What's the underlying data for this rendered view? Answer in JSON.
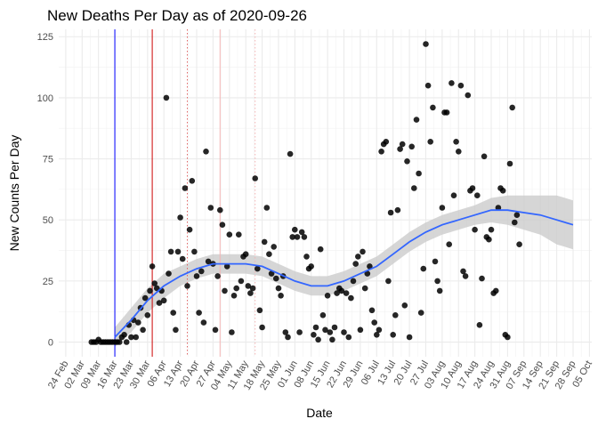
{
  "chart_data": {
    "type": "scatter",
    "title": "New Deaths Per Day as of 2020-09-26",
    "xlabel": "Date",
    "ylabel": "New Counts Per Day",
    "x_range": [
      "2020-02-21",
      "2020-10-06"
    ],
    "ylim": [
      -6,
      128
    ],
    "y_ticks": [
      0,
      25,
      50,
      75,
      100,
      125
    ],
    "x_ticks": [
      {
        "date": "2020-02-24",
        "label": "24 Feb"
      },
      {
        "date": "2020-03-02",
        "label": "02 Mar"
      },
      {
        "date": "2020-03-09",
        "label": "09 Mar"
      },
      {
        "date": "2020-03-16",
        "label": "16 Mar"
      },
      {
        "date": "2020-03-23",
        "label": "23 Mar"
      },
      {
        "date": "2020-03-30",
        "label": "30 Mar"
      },
      {
        "date": "2020-04-06",
        "label": "06 Apr"
      },
      {
        "date": "2020-04-13",
        "label": "13 Apr"
      },
      {
        "date": "2020-04-20",
        "label": "20 Apr"
      },
      {
        "date": "2020-04-27",
        "label": "27 Apr"
      },
      {
        "date": "2020-05-04",
        "label": "04 May"
      },
      {
        "date": "2020-05-11",
        "label": "11 May"
      },
      {
        "date": "2020-05-18",
        "label": "18 May"
      },
      {
        "date": "2020-05-25",
        "label": "25 May"
      },
      {
        "date": "2020-06-01",
        "label": "01 Jun"
      },
      {
        "date": "2020-06-08",
        "label": "08 Jun"
      },
      {
        "date": "2020-06-15",
        "label": "15 Jun"
      },
      {
        "date": "2020-06-22",
        "label": "22 Jun"
      },
      {
        "date": "2020-06-29",
        "label": "29 Jun"
      },
      {
        "date": "2020-07-06",
        "label": "06 Jul"
      },
      {
        "date": "2020-07-13",
        "label": "13 Jul"
      },
      {
        "date": "2020-07-20",
        "label": "20 Jul"
      },
      {
        "date": "2020-07-27",
        "label": "27 Jul"
      },
      {
        "date": "2020-08-03",
        "label": "03 Aug"
      },
      {
        "date": "2020-08-10",
        "label": "10 Aug"
      },
      {
        "date": "2020-08-17",
        "label": "17 Aug"
      },
      {
        "date": "2020-08-24",
        "label": "24 Aug"
      },
      {
        "date": "2020-08-31",
        "label": "31 Aug"
      },
      {
        "date": "2020-09-07",
        "label": "07 Sep"
      },
      {
        "date": "2020-09-14",
        "label": "14 Sep"
      },
      {
        "date": "2020-09-21",
        "label": "21 Sep"
      },
      {
        "date": "2020-09-28",
        "label": "28 Sep"
      },
      {
        "date": "2020-10-05",
        "label": "05 Oct"
      }
    ],
    "grid": true,
    "vlines": [
      {
        "date": "2020-03-16",
        "color": "#0000ff",
        "style": "solid"
      },
      {
        "date": "2020-04-01",
        "color": "#cc0000",
        "style": "solid"
      },
      {
        "date": "2020-04-16",
        "color": "#e06666",
        "style": "dotted"
      },
      {
        "date": "2020-04-30",
        "color": "#f4b4b4",
        "style": "solid"
      },
      {
        "date": "2020-05-15",
        "color": "#f4b4b4",
        "style": "dotted"
      }
    ],
    "point_color": "#000000",
    "smooth_color": "#3366ff",
    "band_color": "#cccccc",
    "points": [
      [
        "2020-03-06",
        0
      ],
      [
        "2020-03-07",
        0
      ],
      [
        "2020-03-08",
        0
      ],
      [
        "2020-03-09",
        1
      ],
      [
        "2020-03-10",
        0
      ],
      [
        "2020-03-11",
        0
      ],
      [
        "2020-03-12",
        0
      ],
      [
        "2020-03-13",
        0
      ],
      [
        "2020-03-14",
        0
      ],
      [
        "2020-03-15",
        0
      ],
      [
        "2020-03-16",
        0
      ],
      [
        "2020-03-17",
        0
      ],
      [
        "2020-03-18",
        0
      ],
      [
        "2020-03-19",
        2
      ],
      [
        "2020-03-20",
        3
      ],
      [
        "2020-03-21",
        0
      ],
      [
        "2020-03-22",
        7
      ],
      [
        "2020-03-23",
        2
      ],
      [
        "2020-03-24",
        9
      ],
      [
        "2020-03-25",
        2
      ],
      [
        "2020-03-26",
        8
      ],
      [
        "2020-03-27",
        14
      ],
      [
        "2020-03-28",
        5
      ],
      [
        "2020-03-29",
        18
      ],
      [
        "2020-03-30",
        11
      ],
      [
        "2020-03-31",
        21
      ],
      [
        "2020-04-01",
        31
      ],
      [
        "2020-04-02",
        24
      ],
      [
        "2020-04-03",
        22
      ],
      [
        "2020-04-04",
        16
      ],
      [
        "2020-04-05",
        21
      ],
      [
        "2020-04-06",
        17
      ],
      [
        "2020-04-07",
        100
      ],
      [
        "2020-04-08",
        28
      ],
      [
        "2020-04-09",
        37
      ],
      [
        "2020-04-10",
        12
      ],
      [
        "2020-04-11",
        5
      ],
      [
        "2020-04-12",
        37
      ],
      [
        "2020-04-13",
        51
      ],
      [
        "2020-04-14",
        34
      ],
      [
        "2020-04-15",
        63
      ],
      [
        "2020-04-16",
        23
      ],
      [
        "2020-04-17",
        46
      ],
      [
        "2020-04-18",
        66
      ],
      [
        "2020-04-19",
        37
      ],
      [
        "2020-04-20",
        27
      ],
      [
        "2020-04-21",
        12
      ],
      [
        "2020-04-22",
        29
      ],
      [
        "2020-04-23",
        8
      ],
      [
        "2020-04-24",
        78
      ],
      [
        "2020-04-25",
        33
      ],
      [
        "2020-04-26",
        55
      ],
      [
        "2020-04-27",
        32
      ],
      [
        "2020-04-28",
        5
      ],
      [
        "2020-04-29",
        27
      ],
      [
        "2020-04-30",
        54
      ],
      [
        "2020-05-01",
        48
      ],
      [
        "2020-05-02",
        21
      ],
      [
        "2020-05-03",
        31
      ],
      [
        "2020-05-04",
        44
      ],
      [
        "2020-05-05",
        4
      ],
      [
        "2020-05-06",
        19
      ],
      [
        "2020-05-07",
        22
      ],
      [
        "2020-05-08",
        44
      ],
      [
        "2020-05-09",
        25
      ],
      [
        "2020-05-10",
        35
      ],
      [
        "2020-05-11",
        36
      ],
      [
        "2020-05-12",
        23
      ],
      [
        "2020-05-13",
        20
      ],
      [
        "2020-05-14",
        22
      ],
      [
        "2020-05-15",
        67
      ],
      [
        "2020-05-16",
        30
      ],
      [
        "2020-05-17",
        13
      ],
      [
        "2020-05-18",
        6
      ],
      [
        "2020-05-19",
        41
      ],
      [
        "2020-05-20",
        55
      ],
      [
        "2020-05-21",
        36
      ],
      [
        "2020-05-22",
        28
      ],
      [
        "2020-05-23",
        39
      ],
      [
        "2020-05-24",
        26
      ],
      [
        "2020-05-25",
        22
      ],
      [
        "2020-05-26",
        19
      ],
      [
        "2020-05-27",
        27
      ],
      [
        "2020-05-28",
        4
      ],
      [
        "2020-05-29",
        2
      ],
      [
        "2020-05-30",
        77
      ],
      [
        "2020-05-31",
        43
      ],
      [
        "2020-06-01",
        46
      ],
      [
        "2020-06-02",
        43
      ],
      [
        "2020-06-03",
        4
      ],
      [
        "2020-06-04",
        45
      ],
      [
        "2020-06-05",
        43
      ],
      [
        "2020-06-06",
        35
      ],
      [
        "2020-06-07",
        30
      ],
      [
        "2020-06-08",
        31
      ],
      [
        "2020-06-09",
        3
      ],
      [
        "2020-06-10",
        6
      ],
      [
        "2020-06-11",
        1
      ],
      [
        "2020-06-12",
        38
      ],
      [
        "2020-06-13",
        11
      ],
      [
        "2020-06-14",
        5
      ],
      [
        "2020-06-15",
        19
      ],
      [
        "2020-06-16",
        4
      ],
      [
        "2020-06-17",
        1
      ],
      [
        "2020-06-18",
        6
      ],
      [
        "2020-06-19",
        20
      ],
      [
        "2020-06-20",
        22
      ],
      [
        "2020-06-21",
        21
      ],
      [
        "2020-06-22",
        4
      ],
      [
        "2020-06-23",
        20
      ],
      [
        "2020-06-24",
        2
      ],
      [
        "2020-06-25",
        18
      ],
      [
        "2020-06-26",
        25
      ],
      [
        "2020-06-27",
        32
      ],
      [
        "2020-06-28",
        35
      ],
      [
        "2020-06-29",
        5
      ],
      [
        "2020-06-30",
        37
      ],
      [
        "2020-07-01",
        22
      ],
      [
        "2020-07-02",
        28
      ],
      [
        "2020-07-03",
        31
      ],
      [
        "2020-07-04",
        13
      ],
      [
        "2020-07-05",
        8
      ],
      [
        "2020-07-06",
        3
      ],
      [
        "2020-07-07",
        5
      ],
      [
        "2020-07-08",
        78
      ],
      [
        "2020-07-09",
        81
      ],
      [
        "2020-07-10",
        82
      ],
      [
        "2020-07-11",
        25
      ],
      [
        "2020-07-12",
        53
      ],
      [
        "2020-07-13",
        3
      ],
      [
        "2020-07-14",
        11
      ],
      [
        "2020-07-15",
        54
      ],
      [
        "2020-07-16",
        79
      ],
      [
        "2020-07-17",
        81
      ],
      [
        "2020-07-18",
        15
      ],
      [
        "2020-07-19",
        74
      ],
      [
        "2020-07-20",
        2
      ],
      [
        "2020-07-21",
        80
      ],
      [
        "2020-07-22",
        63
      ],
      [
        "2020-07-23",
        91
      ],
      [
        "2020-07-24",
        69
      ],
      [
        "2020-07-25",
        12
      ],
      [
        "2020-07-26",
        30
      ],
      [
        "2020-07-27",
        122
      ],
      [
        "2020-07-28",
        105
      ],
      [
        "2020-07-29",
        82
      ],
      [
        "2020-07-30",
        96
      ],
      [
        "2020-07-31",
        33
      ],
      [
        "2020-08-01",
        25
      ],
      [
        "2020-08-02",
        21
      ],
      [
        "2020-08-03",
        55
      ],
      [
        "2020-08-04",
        94
      ],
      [
        "2020-08-05",
        94
      ],
      [
        "2020-08-06",
        40
      ],
      [
        "2020-08-07",
        106
      ],
      [
        "2020-08-08",
        60
      ],
      [
        "2020-08-09",
        82
      ],
      [
        "2020-08-10",
        78
      ],
      [
        "2020-08-11",
        105
      ],
      [
        "2020-08-12",
        29
      ],
      [
        "2020-08-13",
        27
      ],
      [
        "2020-08-14",
        101
      ],
      [
        "2020-08-15",
        62
      ],
      [
        "2020-08-16",
        63
      ],
      [
        "2020-08-17",
        46
      ],
      [
        "2020-08-18",
        60
      ],
      [
        "2020-08-19",
        7
      ],
      [
        "2020-08-20",
        26
      ],
      [
        "2020-08-21",
        76
      ],
      [
        "2020-08-22",
        43
      ],
      [
        "2020-08-23",
        42
      ],
      [
        "2020-08-24",
        46
      ],
      [
        "2020-08-25",
        20
      ],
      [
        "2020-08-26",
        21
      ],
      [
        "2020-08-27",
        55
      ],
      [
        "2020-08-28",
        63
      ],
      [
        "2020-08-29",
        62
      ],
      [
        "2020-08-30",
        3
      ],
      [
        "2020-08-31",
        2
      ],
      [
        "2020-09-01",
        73
      ],
      [
        "2020-09-02",
        96
      ],
      [
        "2020-09-03",
        49
      ],
      [
        "2020-09-04",
        52
      ],
      [
        "2020-09-05",
        40
      ]
    ],
    "smooth": [
      [
        "2020-03-16",
        2,
        -2,
        6
      ],
      [
        "2020-03-23",
        9,
        4,
        14
      ],
      [
        "2020-03-30",
        17,
        12,
        22
      ],
      [
        "2020-04-06",
        23,
        18,
        28
      ],
      [
        "2020-04-13",
        27,
        23,
        31
      ],
      [
        "2020-04-20",
        30,
        26,
        34
      ],
      [
        "2020-04-27",
        32,
        28,
        36
      ],
      [
        "2020-05-04",
        32,
        28,
        36
      ],
      [
        "2020-05-11",
        32,
        28,
        36
      ],
      [
        "2020-05-18",
        31,
        27,
        35
      ],
      [
        "2020-05-25",
        28,
        24,
        32
      ],
      [
        "2020-06-01",
        25,
        21,
        29
      ],
      [
        "2020-06-08",
        23,
        19,
        27
      ],
      [
        "2020-06-15",
        23,
        19,
        27
      ],
      [
        "2020-06-22",
        25,
        21,
        29
      ],
      [
        "2020-06-29",
        28,
        24,
        32
      ],
      [
        "2020-07-06",
        31,
        27,
        35
      ],
      [
        "2020-07-13",
        36,
        32,
        40
      ],
      [
        "2020-07-20",
        41,
        37,
        45
      ],
      [
        "2020-07-27",
        45,
        41,
        49
      ],
      [
        "2020-08-03",
        48,
        44,
        52
      ],
      [
        "2020-08-10",
        50,
        46,
        54
      ],
      [
        "2020-08-17",
        52,
        48,
        56
      ],
      [
        "2020-08-24",
        54,
        49,
        59
      ],
      [
        "2020-08-31",
        54,
        48,
        60
      ],
      [
        "2020-09-07",
        53,
        46,
        60
      ],
      [
        "2020-09-14",
        52,
        44,
        60
      ],
      [
        "2020-09-21",
        50,
        40,
        60
      ],
      [
        "2020-09-28",
        48,
        38,
        58
      ]
    ]
  }
}
